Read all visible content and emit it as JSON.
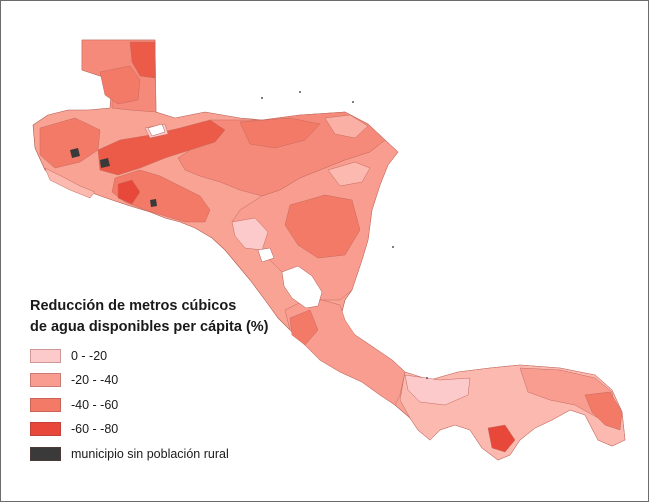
{
  "legend": {
    "title_line1": "Reducción de metros cúbicos",
    "title_line2": "de agua disponibles per cápita (%)",
    "items": [
      {
        "label": "0 - -20",
        "color": "#fccaca"
      },
      {
        "label": "-20 - -40",
        "color": "#f99d90"
      },
      {
        "label": "-40 - -60",
        "color": "#f47a68"
      },
      {
        "label": "-60 - -80",
        "color": "#e8483a"
      },
      {
        "label": "municipio sin población rural",
        "color": "#3a3a3a"
      }
    ]
  },
  "map": {
    "regions": [
      {
        "name": "region-north-peten-block",
        "class": 2
      },
      {
        "name": "region-guatemala-west",
        "class": 2
      },
      {
        "name": "region-honduras",
        "class": 2
      },
      {
        "name": "region-el-salvador",
        "class": 3
      },
      {
        "name": "region-nicaragua",
        "class": 2
      },
      {
        "name": "region-costa-rica",
        "class": 2
      },
      {
        "name": "region-panama",
        "class": 1
      }
    ]
  }
}
